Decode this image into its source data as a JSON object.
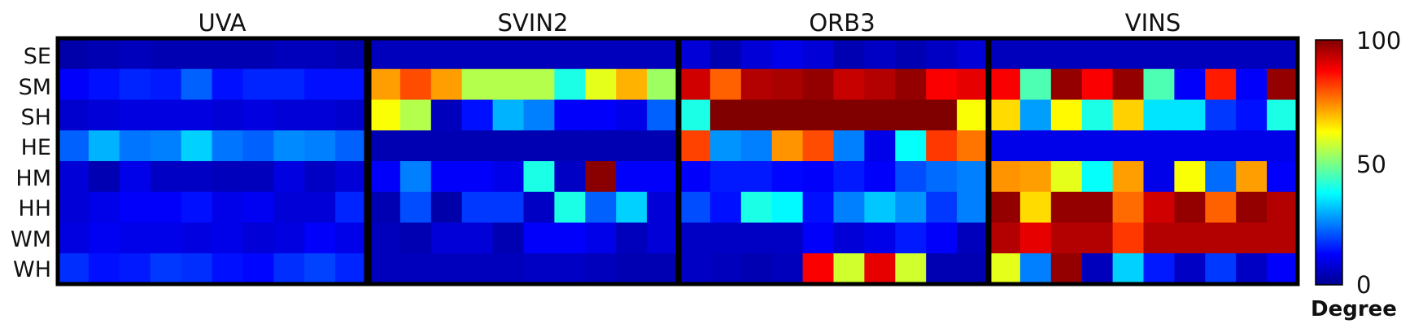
{
  "chart_data": {
    "type": "heatmap",
    "panels": [
      {
        "name": "UVA",
        "values": [
          [
            3,
            4,
            5,
            4,
            4,
            4,
            4,
            5,
            5,
            4
          ],
          [
            12,
            14,
            16,
            15,
            22,
            14,
            16,
            16,
            14,
            14
          ],
          [
            7,
            8,
            9,
            9,
            9,
            8,
            9,
            8,
            8,
            7
          ],
          [
            22,
            30,
            24,
            25,
            33,
            24,
            22,
            26,
            25,
            22
          ],
          [
            8,
            4,
            10,
            6,
            6,
            5,
            5,
            9,
            6,
            8
          ],
          [
            8,
            10,
            12,
            12,
            14,
            10,
            11,
            8,
            8,
            16
          ],
          [
            9,
            11,
            10,
            10,
            9,
            10,
            8,
            9,
            12,
            10
          ],
          [
            17,
            14,
            15,
            18,
            17,
            14,
            13,
            17,
            19,
            16
          ]
        ]
      },
      {
        "name": "SVIN2",
        "values": [
          [
            5,
            5,
            5,
            5,
            5,
            5,
            5,
            5,
            5,
            5
          ],
          [
            72,
            80,
            72,
            55,
            55,
            55,
            40,
            60,
            70,
            53
          ],
          [
            62,
            55,
            5,
            14,
            30,
            25,
            12,
            12,
            10,
            22
          ],
          [
            4,
            4,
            4,
            4,
            4,
            4,
            4,
            4,
            4,
            4
          ],
          [
            12,
            25,
            12,
            12,
            10,
            40,
            6,
            99,
            12,
            12
          ],
          [
            4,
            20,
            3,
            18,
            18,
            6,
            40,
            22,
            33,
            8
          ],
          [
            5,
            4,
            8,
            8,
            4,
            12,
            12,
            10,
            5,
            8
          ],
          [
            5,
            5,
            5,
            5,
            5,
            6,
            6,
            5,
            4,
            4
          ]
        ]
      },
      {
        "name": "ORB3",
        "values": [
          [
            8,
            4,
            8,
            10,
            8,
            4,
            6,
            4,
            6,
            8
          ],
          [
            92,
            78,
            95,
            96,
            98,
            93,
            95,
            98,
            88,
            90
          ],
          [
            40,
            100,
            100,
            100,
            100,
            100,
            100,
            100,
            100,
            62
          ],
          [
            81,
            27,
            25,
            73,
            80,
            25,
            10,
            38,
            82,
            76
          ],
          [
            12,
            15,
            15,
            13,
            12,
            15,
            12,
            20,
            23,
            25
          ],
          [
            20,
            14,
            40,
            37,
            14,
            25,
            32,
            27,
            18,
            25
          ],
          [
            6,
            6,
            6,
            6,
            12,
            8,
            10,
            15,
            12,
            5
          ],
          [
            6,
            5,
            4,
            5,
            88,
            58,
            90,
            58,
            4,
            4
          ]
        ]
      },
      {
        "name": "VINS",
        "values": [
          [
            5,
            5,
            5,
            5,
            5,
            5,
            5,
            5,
            5,
            5
          ],
          [
            88,
            45,
            98,
            88,
            98,
            45,
            12,
            85,
            12,
            98
          ],
          [
            66,
            28,
            63,
            40,
            67,
            35,
            35,
            18,
            14,
            40
          ],
          [
            10,
            10,
            10,
            10,
            10,
            10,
            10,
            10,
            10,
            10
          ],
          [
            73,
            72,
            60,
            38,
            72,
            10,
            62,
            23,
            72,
            12
          ],
          [
            98,
            66,
            98,
            98,
            77,
            92,
            98,
            78,
            98,
            95
          ],
          [
            95,
            90,
            95,
            95,
            82,
            95,
            95,
            95,
            95,
            95
          ],
          [
            60,
            25,
            98,
            5,
            33,
            15,
            6,
            18,
            6,
            12
          ]
        ]
      }
    ],
    "row_labels": [
      "SE",
      "SM",
      "SH",
      "HE",
      "HM",
      "HH",
      "WM",
      "WH"
    ],
    "colorbar": {
      "min": 0,
      "max": 100,
      "ticks": [
        "0",
        "50",
        "100"
      ],
      "label": "Degree",
      "colormap": "jet"
    },
    "value_range": [
      0,
      100
    ]
  },
  "colors": {
    "frame": "#000000",
    "background": "#ffffff"
  }
}
